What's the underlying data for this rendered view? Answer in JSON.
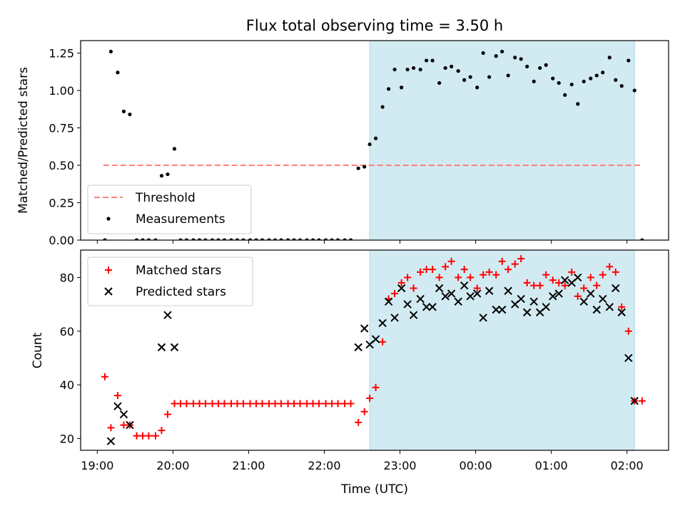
{
  "title": "Flux total observing time = 3.50 h",
  "x_axis": {
    "label": "Time (UTC)",
    "ticks": [
      {
        "value": 19.0,
        "label": "19:00"
      },
      {
        "value": 20.0,
        "label": "20:00"
      },
      {
        "value": 21.0,
        "label": "21:00"
      },
      {
        "value": 22.0,
        "label": "22:00"
      },
      {
        "value": 23.0,
        "label": "23:00"
      },
      {
        "value": 24.0,
        "label": "00:00"
      },
      {
        "value": 25.0,
        "label": "01:00"
      },
      {
        "value": 26.0,
        "label": "02:00"
      }
    ]
  },
  "colors": {
    "threshold": "#ff7f7f",
    "matched": "#ff0000",
    "predicted": "#000000",
    "shade": "#add8e6"
  },
  "chart_data": [
    {
      "type": "scatter",
      "ylabel": "Matched/Predicted stars",
      "xlim": [
        18.78,
        26.55
      ],
      "ylim": [
        0,
        1.333
      ],
      "yticks": [
        {
          "value": 0.0,
          "label": "0.00"
        },
        {
          "value": 0.25,
          "label": "0.25"
        },
        {
          "value": 0.5,
          "label": "0.50"
        },
        {
          "value": 0.75,
          "label": "0.75"
        },
        {
          "value": 1.0,
          "label": "1.00"
        },
        {
          "value": 1.25,
          "label": "1.25"
        }
      ],
      "shaded_interval": [
        22.6,
        26.1
      ],
      "threshold": {
        "name": "Threshold",
        "value": 0.5,
        "x_range": [
          19.08,
          26.2
        ]
      },
      "legend_position": "lower-left",
      "series": [
        {
          "name": "Measurements",
          "points": [
            [
              19.1,
              0.0
            ],
            [
              19.18,
              1.26
            ],
            [
              19.27,
              1.12
            ],
            [
              19.35,
              0.86
            ],
            [
              19.43,
              0.84
            ],
            [
              19.52,
              0.0
            ],
            [
              19.6,
              0.0
            ],
            [
              19.68,
              0.0
            ],
            [
              19.77,
              0.0
            ],
            [
              19.85,
              0.43
            ],
            [
              19.93,
              0.44
            ],
            [
              20.02,
              0.61
            ],
            [
              20.1,
              0.0
            ],
            [
              20.18,
              0.0
            ],
            [
              20.27,
              0.0
            ],
            [
              20.35,
              0.0
            ],
            [
              20.43,
              0.0
            ],
            [
              20.52,
              0.0
            ],
            [
              20.6,
              0.0
            ],
            [
              20.68,
              0.0
            ],
            [
              20.77,
              0.0
            ],
            [
              20.85,
              0.0
            ],
            [
              20.93,
              0.0
            ],
            [
              21.02,
              0.0
            ],
            [
              21.1,
              0.0
            ],
            [
              21.18,
              0.0
            ],
            [
              21.27,
              0.0
            ],
            [
              21.35,
              0.0
            ],
            [
              21.43,
              0.0
            ],
            [
              21.52,
              0.0
            ],
            [
              21.6,
              0.0
            ],
            [
              21.68,
              0.0
            ],
            [
              21.77,
              0.0
            ],
            [
              21.85,
              0.0
            ],
            [
              21.93,
              0.0
            ],
            [
              22.02,
              0.0
            ],
            [
              22.1,
              0.0
            ],
            [
              22.18,
              0.0
            ],
            [
              22.27,
              0.0
            ],
            [
              22.35,
              0.0
            ],
            [
              22.45,
              0.48
            ],
            [
              22.53,
              0.49
            ],
            [
              22.6,
              0.64
            ],
            [
              22.68,
              0.68
            ],
            [
              22.77,
              0.89
            ],
            [
              22.85,
              1.01
            ],
            [
              22.93,
              1.14
            ],
            [
              23.02,
              1.02
            ],
            [
              23.1,
              1.14
            ],
            [
              23.18,
              1.15
            ],
            [
              23.27,
              1.14
            ],
            [
              23.35,
              1.2
            ],
            [
              23.43,
              1.2
            ],
            [
              23.52,
              1.05
            ],
            [
              23.6,
              1.15
            ],
            [
              23.68,
              1.16
            ],
            [
              23.77,
              1.13
            ],
            [
              23.85,
              1.07
            ],
            [
              23.93,
              1.09
            ],
            [
              24.02,
              1.02
            ],
            [
              24.1,
              1.25
            ],
            [
              24.18,
              1.09
            ],
            [
              24.27,
              1.23
            ],
            [
              24.35,
              1.26
            ],
            [
              24.43,
              1.1
            ],
            [
              24.52,
              1.22
            ],
            [
              24.6,
              1.21
            ],
            [
              24.68,
              1.16
            ],
            [
              24.77,
              1.06
            ],
            [
              24.85,
              1.15
            ],
            [
              24.93,
              1.17
            ],
            [
              25.02,
              1.08
            ],
            [
              25.1,
              1.05
            ],
            [
              25.18,
              0.97
            ],
            [
              25.27,
              1.04
            ],
            [
              25.35,
              0.91
            ],
            [
              25.43,
              1.06
            ],
            [
              25.52,
              1.08
            ],
            [
              25.6,
              1.1
            ],
            [
              25.68,
              1.12
            ],
            [
              25.77,
              1.22
            ],
            [
              25.85,
              1.07
            ],
            [
              25.93,
              1.03
            ],
            [
              26.02,
              1.2
            ],
            [
              26.1,
              1.0
            ],
            [
              26.2,
              0.0
            ]
          ]
        }
      ]
    },
    {
      "type": "scatter",
      "ylabel": "Count",
      "xlim": [
        18.78,
        26.55
      ],
      "ylim": [
        15.6,
        90.2
      ],
      "yticks": [
        {
          "value": 20,
          "label": "20"
        },
        {
          "value": 40,
          "label": "40"
        },
        {
          "value": 60,
          "label": "60"
        },
        {
          "value": 80,
          "label": "80"
        }
      ],
      "shaded_interval": [
        22.6,
        26.1
      ],
      "legend_position": "upper-left",
      "series": [
        {
          "name": "Matched stars",
          "marker": "plus",
          "points": [
            [
              19.1,
              43
            ],
            [
              19.18,
              24
            ],
            [
              19.27,
              36
            ],
            [
              19.35,
              25
            ],
            [
              19.43,
              25
            ],
            [
              19.52,
              21
            ],
            [
              19.6,
              21
            ],
            [
              19.68,
              21
            ],
            [
              19.77,
              21
            ],
            [
              19.85,
              23
            ],
            [
              19.93,
              29
            ],
            [
              20.02,
              33
            ],
            [
              20.1,
              33
            ],
            [
              20.18,
              33
            ],
            [
              20.27,
              33
            ],
            [
              20.35,
              33
            ],
            [
              20.43,
              33
            ],
            [
              20.52,
              33
            ],
            [
              20.6,
              33
            ],
            [
              20.68,
              33
            ],
            [
              20.77,
              33
            ],
            [
              20.85,
              33
            ],
            [
              20.93,
              33
            ],
            [
              21.02,
              33
            ],
            [
              21.1,
              33
            ],
            [
              21.18,
              33
            ],
            [
              21.27,
              33
            ],
            [
              21.35,
              33
            ],
            [
              21.43,
              33
            ],
            [
              21.52,
              33
            ],
            [
              21.6,
              33
            ],
            [
              21.68,
              33
            ],
            [
              21.77,
              33
            ],
            [
              21.85,
              33
            ],
            [
              21.93,
              33
            ],
            [
              22.02,
              33
            ],
            [
              22.1,
              33
            ],
            [
              22.18,
              33
            ],
            [
              22.27,
              33
            ],
            [
              22.35,
              33
            ],
            [
              22.45,
              26
            ],
            [
              22.53,
              30
            ],
            [
              22.6,
              35
            ],
            [
              22.68,
              39
            ],
            [
              22.77,
              56
            ],
            [
              22.85,
              72
            ],
            [
              22.93,
              74
            ],
            [
              23.02,
              78
            ],
            [
              23.1,
              80
            ],
            [
              23.18,
              76
            ],
            [
              23.27,
              82
            ],
            [
              23.35,
              83
            ],
            [
              23.43,
              83
            ],
            [
              23.52,
              80
            ],
            [
              23.6,
              84
            ],
            [
              23.68,
              86
            ],
            [
              23.77,
              80
            ],
            [
              23.85,
              83
            ],
            [
              23.93,
              80
            ],
            [
              24.02,
              76
            ],
            [
              24.1,
              81
            ],
            [
              24.18,
              82
            ],
            [
              24.27,
              81
            ],
            [
              24.35,
              86
            ],
            [
              24.43,
              83
            ],
            [
              24.52,
              85
            ],
            [
              24.6,
              87
            ],
            [
              24.68,
              78
            ],
            [
              24.77,
              77
            ],
            [
              24.85,
              77
            ],
            [
              24.93,
              81
            ],
            [
              25.02,
              79
            ],
            [
              25.1,
              78
            ],
            [
              25.18,
              77
            ],
            [
              25.27,
              82
            ],
            [
              25.35,
              73
            ],
            [
              25.43,
              76
            ],
            [
              25.52,
              80
            ],
            [
              25.6,
              77
            ],
            [
              25.68,
              81
            ],
            [
              25.77,
              84
            ],
            [
              25.85,
              82
            ],
            [
              25.93,
              69
            ],
            [
              26.02,
              60
            ],
            [
              26.1,
              34
            ],
            [
              26.2,
              34
            ]
          ]
        },
        {
          "name": "Predicted stars",
          "marker": "x",
          "points": [
            [
              19.18,
              19
            ],
            [
              19.27,
              32
            ],
            [
              19.35,
              29
            ],
            [
              19.43,
              25
            ],
            [
              19.85,
              54
            ],
            [
              19.93,
              66
            ],
            [
              20.02,
              54
            ],
            [
              22.45,
              54
            ],
            [
              22.53,
              61
            ],
            [
              22.6,
              55
            ],
            [
              22.68,
              57
            ],
            [
              22.77,
              63
            ],
            [
              22.85,
              71
            ],
            [
              22.93,
              65
            ],
            [
              23.02,
              76
            ],
            [
              23.1,
              70
            ],
            [
              23.18,
              66
            ],
            [
              23.27,
              72
            ],
            [
              23.35,
              69
            ],
            [
              23.43,
              69
            ],
            [
              23.52,
              76
            ],
            [
              23.6,
              73
            ],
            [
              23.68,
              74
            ],
            [
              23.77,
              71
            ],
            [
              23.85,
              77
            ],
            [
              23.93,
              73
            ],
            [
              24.02,
              74
            ],
            [
              24.1,
              65
            ],
            [
              24.18,
              75
            ],
            [
              24.27,
              68
            ],
            [
              24.35,
              68
            ],
            [
              24.43,
              75
            ],
            [
              24.52,
              70
            ],
            [
              24.6,
              72
            ],
            [
              24.68,
              67
            ],
            [
              24.77,
              71
            ],
            [
              24.85,
              67
            ],
            [
              24.93,
              69
            ],
            [
              25.02,
              73
            ],
            [
              25.1,
              74
            ],
            [
              25.18,
              79
            ],
            [
              25.27,
              78
            ],
            [
              25.35,
              80
            ],
            [
              25.43,
              71
            ],
            [
              25.52,
              74
            ],
            [
              25.6,
              68
            ],
            [
              25.68,
              72
            ],
            [
              25.77,
              69
            ],
            [
              25.85,
              76
            ],
            [
              25.93,
              67
            ],
            [
              26.02,
              50
            ],
            [
              26.1,
              34
            ]
          ]
        }
      ]
    }
  ]
}
